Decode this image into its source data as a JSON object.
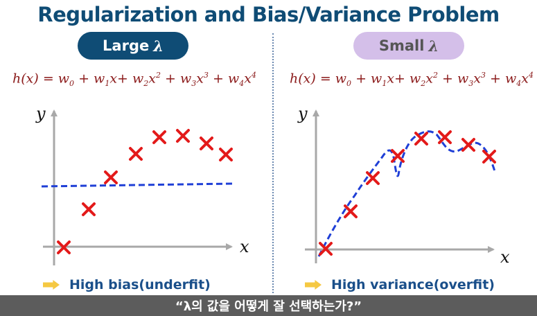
{
  "title": "Regularization and Bias/Variance Problem",
  "left": {
    "label": "Large",
    "symbol": "λ",
    "formula": {
      "h": "h(x)",
      "eq": " = ",
      "t0": "w",
      "s0": "0",
      "t1": " + w",
      "s1": "1",
      "t1b": "x+ ",
      "t2": "w",
      "s2": "2",
      "t2b": "x",
      "p2": "2",
      "t3": " + w",
      "s3": "3",
      "t3b": "x",
      "p3": "3",
      "t4": " + w",
      "s4": "4",
      "t4b": "x",
      "p4": "4"
    },
    "y_axis": "y",
    "x_axis": "x",
    "note": "High bias(underfit)"
  },
  "right": {
    "label": "Small",
    "symbol": "λ",
    "formula": {
      "h": "h(x)",
      "eq": " = ",
      "t0": "w",
      "s0": "0",
      "t1": " + w",
      "s1": "1",
      "t1b": "x+ ",
      "t2": "w",
      "s2": "2",
      "t2b": "x",
      "p2": "2",
      "t3": " + w",
      "s3": "3",
      "t3b": "x",
      "p3": "3",
      "t4": " + w",
      "s4": "4",
      "t4b": "x",
      "p4": "4"
    },
    "y_axis": "y",
    "x_axis": "x",
    "note": "High variance(overfit)"
  },
  "footer": "“λ의 값을 어떻게 잘 선택하는가?”",
  "colors": {
    "title": "#0f4c75",
    "marker": "#e31a1a",
    "fit_line": "#1f3fd6",
    "axis": "#a8a8a8",
    "formula": "#8b1a1a",
    "note": "#1a4f8a",
    "arrow": "#f5c842",
    "footer_bg": "#5c5c5c"
  },
  "icons": {
    "marker": "cross-mark-icon",
    "note_arrow": "right-arrow-icon"
  }
}
